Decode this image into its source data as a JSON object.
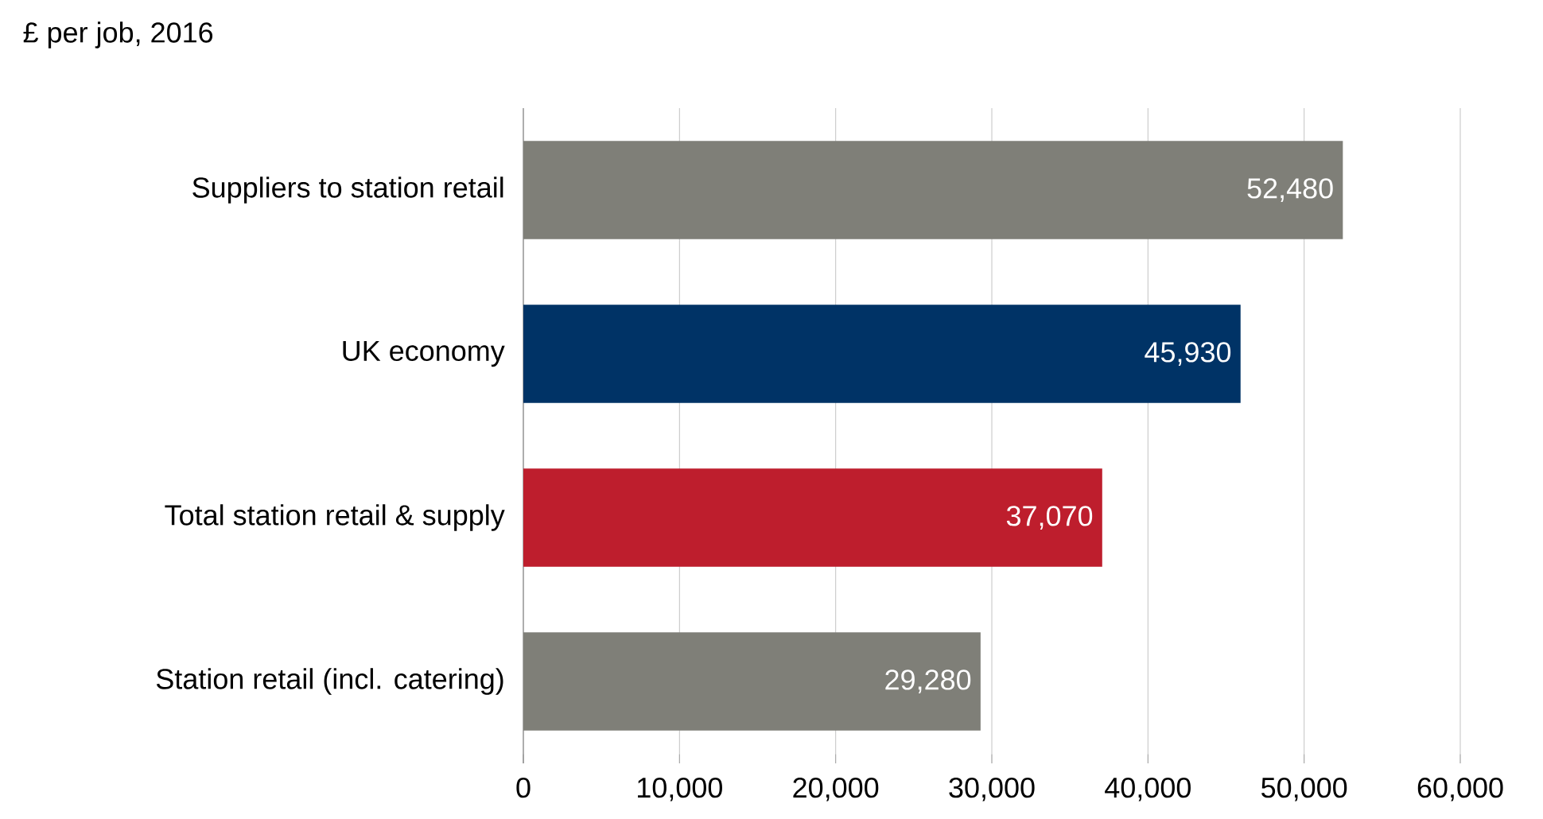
{
  "chart_data": {
    "type": "bar",
    "orientation": "horizontal",
    "title": "£ per job, 2016",
    "categories": [
      "Suppliers to station retail",
      "UK economy",
      "Total station retail & supply",
      "Station retail (incl. catering)"
    ],
    "values": [
      52480,
      45930,
      37070,
      29280
    ],
    "value_labels": [
      "52,480",
      "45,930",
      "37,070",
      "29,280"
    ],
    "colors": [
      "#7f7f78",
      "#003366",
      "#be1e2d",
      "#7f7f78"
    ],
    "xlim": [
      0,
      60000
    ],
    "xticks": [
      0,
      {
        "value": 10000,
        "label": "10,000"
      },
      {
        "value": 20000,
        "label": "20,000"
      },
      {
        "value": 30000,
        "label": "30,000"
      },
      {
        "value": 40000,
        "label": "40,000"
      },
      {
        "value": 50000,
        "label": "50,000"
      },
      {
        "value": 60000,
        "label": "60,000"
      }
    ],
    "grid": "x"
  }
}
